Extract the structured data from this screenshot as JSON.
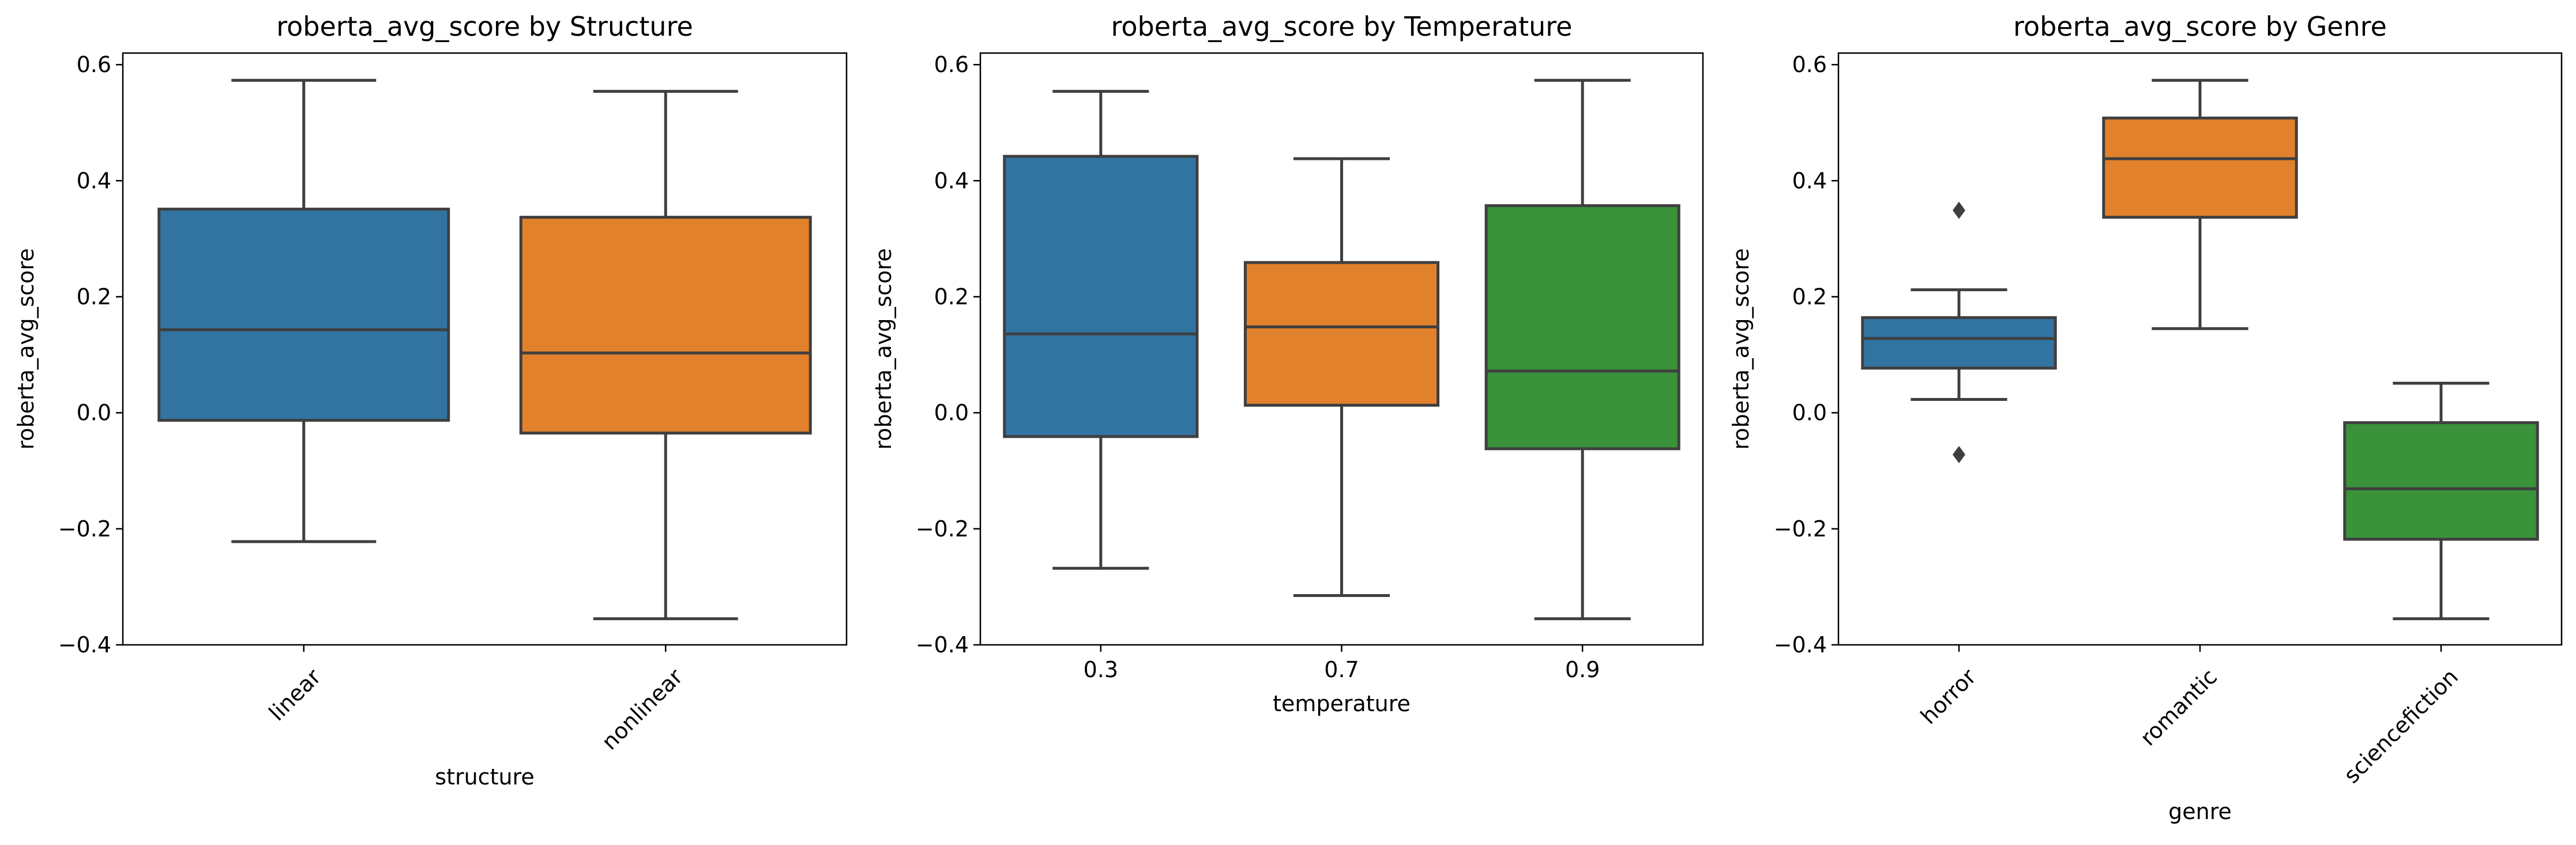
{
  "chart_data": [
    {
      "type": "box",
      "title": "roberta_avg_score by Structure",
      "xlabel": "structure",
      "ylabel": "roberta_avg_score",
      "ylim": [
        -0.4,
        0.62
      ],
      "yticks": [
        -0.4,
        -0.2,
        0.0,
        0.2,
        0.4,
        0.6
      ],
      "ytick_labels": [
        "−0.4",
        "−0.2",
        "0.0",
        "0.2",
        "0.4",
        "0.6"
      ],
      "xtick_rotation": 45,
      "grid": false,
      "categories": [
        "linear",
        "nonlinear"
      ],
      "boxes": [
        {
          "category": "linear",
          "whisker_low": -0.222,
          "q1": -0.013,
          "median": 0.143,
          "q3": 0.351,
          "whisker_high": 0.573,
          "outliers": [],
          "color": "#3274a1"
        },
        {
          "category": "nonlinear",
          "whisker_low": -0.355,
          "q1": -0.035,
          "median": 0.103,
          "q3": 0.337,
          "whisker_high": 0.554,
          "outliers": [],
          "color": "#e1812c"
        }
      ]
    },
    {
      "type": "box",
      "title": "roberta_avg_score by Temperature",
      "xlabel": "temperature",
      "ylabel": "roberta_avg_score",
      "ylim": [
        -0.4,
        0.62
      ],
      "yticks": [
        -0.4,
        -0.2,
        0.0,
        0.2,
        0.4,
        0.6
      ],
      "ytick_labels": [
        "−0.4",
        "−0.2",
        "0.0",
        "0.2",
        "0.4",
        "0.6"
      ],
      "xtick_rotation": 0,
      "grid": false,
      "categories": [
        "0.3",
        "0.7",
        "0.9"
      ],
      "boxes": [
        {
          "category": "0.3",
          "whisker_low": -0.268,
          "q1": -0.041,
          "median": 0.136,
          "q3": 0.442,
          "whisker_high": 0.554,
          "outliers": [],
          "color": "#3274a1"
        },
        {
          "category": "0.7",
          "whisker_low": -0.315,
          "q1": 0.013,
          "median": 0.148,
          "q3": 0.259,
          "whisker_high": 0.438,
          "outliers": [],
          "color": "#e1812c"
        },
        {
          "category": "0.9",
          "whisker_low": -0.355,
          "q1": -0.062,
          "median": 0.072,
          "q3": 0.357,
          "whisker_high": 0.573,
          "outliers": [],
          "color": "#3a923a"
        }
      ]
    },
    {
      "type": "box",
      "title": "roberta_avg_score by Genre",
      "xlabel": "genre",
      "ylabel": "roberta_avg_score",
      "ylim": [
        -0.4,
        0.62
      ],
      "yticks": [
        -0.4,
        -0.2,
        0.0,
        0.2,
        0.4,
        0.6
      ],
      "ytick_labels": [
        "−0.4",
        "−0.2",
        "0.0",
        "0.2",
        "0.4",
        "0.6"
      ],
      "xtick_rotation": 45,
      "grid": false,
      "categories": [
        "horror",
        "romantic",
        "sciencefiction"
      ],
      "boxes": [
        {
          "category": "horror",
          "whisker_low": 0.023,
          "q1": 0.077,
          "median": 0.128,
          "q3": 0.164,
          "whisker_high": 0.212,
          "outliers": [
            0.349,
            -0.072
          ],
          "color": "#3274a1"
        },
        {
          "category": "romantic",
          "whisker_low": 0.145,
          "q1": 0.337,
          "median": 0.438,
          "q3": 0.508,
          "whisker_high": 0.573,
          "outliers": [],
          "color": "#e1812c"
        },
        {
          "category": "sciencefiction",
          "whisker_low": -0.355,
          "q1": -0.218,
          "median": -0.131,
          "q3": -0.017,
          "whisker_high": 0.051,
          "outliers": [],
          "color": "#3a923a"
        }
      ]
    }
  ]
}
